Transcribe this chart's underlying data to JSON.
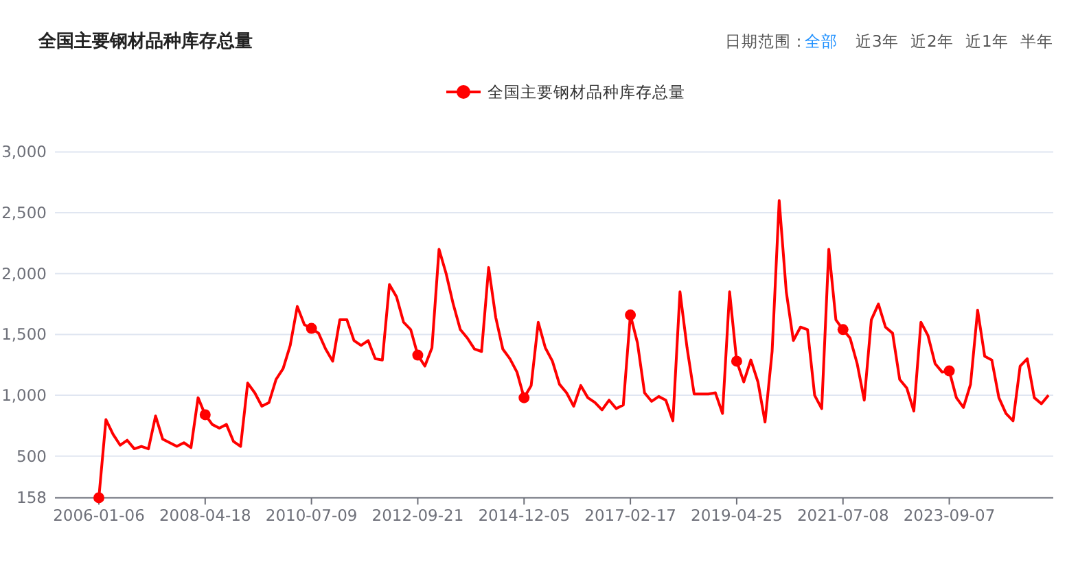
{
  "chart_data": {
    "type": "line",
    "title": "全国主要钢材品种库存总量",
    "annotations": [
      "日期范围：",
      "全部",
      "近3年",
      "近2年",
      "近1年",
      "半年"
    ],
    "categories": [
      "2006-01-06",
      null,
      null,
      null,
      null,
      null,
      null,
      null,
      null,
      null,
      null,
      null,
      null,
      null,
      null,
      "2008-04-18",
      null,
      null,
      null,
      null,
      null,
      null,
      null,
      null,
      null,
      null,
      null,
      null,
      null,
      null,
      "2010-07-09",
      null,
      null,
      null,
      null,
      null,
      null,
      null,
      null,
      null,
      null,
      null,
      null,
      null,
      null,
      "2012-09-21",
      null,
      null,
      null,
      null,
      null,
      null,
      null,
      null,
      null,
      null,
      null,
      null,
      null,
      null,
      "2014-12-05",
      null,
      null,
      null,
      null,
      null,
      null,
      null,
      null,
      null,
      null,
      null,
      null,
      null,
      null,
      "2017-02-17",
      null,
      null,
      null,
      null,
      null,
      null,
      null,
      null,
      null,
      null,
      null,
      null,
      null,
      null,
      "2019-04-25",
      null,
      null,
      null,
      null,
      null,
      null,
      null,
      null,
      null,
      null,
      null,
      null,
      null,
      null,
      "2021-07-08",
      null,
      null,
      null,
      null,
      null,
      null,
      null,
      null,
      null,
      null,
      null,
      null,
      null,
      null,
      "2023-09-07",
      null,
      null,
      null,
      null,
      null,
      null,
      null,
      null,
      null,
      null,
      null,
      null,
      null,
      null
    ],
    "series": [
      {
        "name": "全国主要钢材品种库存总量",
        "color": "#ff0000",
        "values": [
          158,
          800,
          680,
          590,
          630,
          560,
          580,
          560,
          830,
          640,
          610,
          580,
          610,
          570,
          980,
          840,
          760,
          730,
          760,
          620,
          580,
          1100,
          1020,
          910,
          940,
          1130,
          1220,
          1410,
          1730,
          1580,
          1550,
          1510,
          1380,
          1280,
          1620,
          1620,
          1450,
          1410,
          1450,
          1300,
          1290,
          1910,
          1810,
          1600,
          1540,
          1330,
          1240,
          1390,
          2200,
          2000,
          1750,
          1540,
          1470,
          1380,
          1360,
          2050,
          1640,
          1380,
          1300,
          1190,
          980,
          1080,
          1600,
          1390,
          1280,
          1090,
          1020,
          910,
          1080,
          980,
          940,
          880,
          960,
          890,
          920,
          1660,
          1430,
          1020,
          950,
          990,
          960,
          790,
          1850,
          1390,
          1010,
          1010,
          1010,
          1020,
          850,
          1850,
          1280,
          1110,
          1290,
          1110,
          780,
          1360,
          2600,
          1850,
          1450,
          1560,
          1540,
          1000,
          890,
          2200,
          1620,
          1540,
          1470,
          1260,
          960,
          1620,
          1750,
          1560,
          1510,
          1130,
          1060,
          870,
          1600,
          1490,
          1260,
          1190,
          1200,
          980,
          900,
          1090,
          1700,
          1320,
          1290,
          980,
          850,
          790,
          1240,
          1300,
          980,
          930,
          1000
        ]
      }
    ],
    "ylim": [
      158,
      3000
    ],
    "yticks": [
      158,
      500,
      {
        "value": 1000,
        "label": "1,000"
      },
      {
        "value": 1500,
        "label": "1,500"
      },
      {
        "value": 2000,
        "label": "2,000"
      },
      {
        "value": 2500,
        "label": "2,500"
      },
      {
        "value": 3000,
        "label": "3,000"
      }
    ],
    "grid": "y",
    "legend": "top",
    "line_style": "solid"
  }
}
